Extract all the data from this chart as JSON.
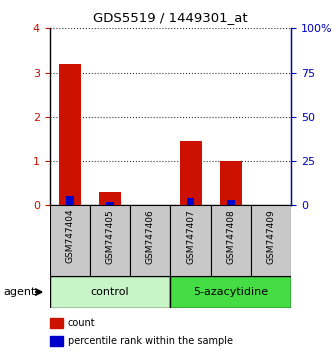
{
  "title": "GDS5519 / 1449301_at",
  "samples": [
    "GSM747404",
    "GSM747405",
    "GSM747406",
    "GSM747407",
    "GSM747408",
    "GSM747409"
  ],
  "red_values": [
    3.2,
    0.3,
    0.0,
    1.45,
    1.0,
    0.0
  ],
  "blue_values_pct": [
    5.0,
    2.0,
    0.0,
    4.0,
    3.0,
    0.0
  ],
  "ylim_left": [
    0,
    4
  ],
  "ylim_right": [
    0,
    100
  ],
  "yticks_left": [
    0,
    1,
    2,
    3,
    4
  ],
  "yticks_right": [
    0,
    25,
    50,
    75,
    100
  ],
  "yticklabels_left": [
    "0",
    "1",
    "2",
    "3",
    "4"
  ],
  "yticklabels_right": [
    "0",
    "25",
    "50",
    "75",
    "100%"
  ],
  "groups": [
    {
      "label": "control",
      "samples_idx": [
        0,
        1,
        2
      ],
      "color": "#c8f5c8"
    },
    {
      "label": "5-azacytidine",
      "samples_idx": [
        3,
        4,
        5
      ],
      "color": "#44dd44"
    }
  ],
  "agent_label": "agent",
  "legend_items": [
    {
      "label": "count",
      "color": "#cc1100"
    },
    {
      "label": "percentile rank within the sample",
      "color": "#0000cc"
    }
  ],
  "bar_color_red": "#cc1100",
  "bar_color_blue": "#0000cc",
  "title_color": "#000000",
  "left_axis_color": "#cc1100",
  "right_axis_color": "#0000bb",
  "grid_color": "#333333",
  "xticklabel_bg": "#c8c8c8"
}
